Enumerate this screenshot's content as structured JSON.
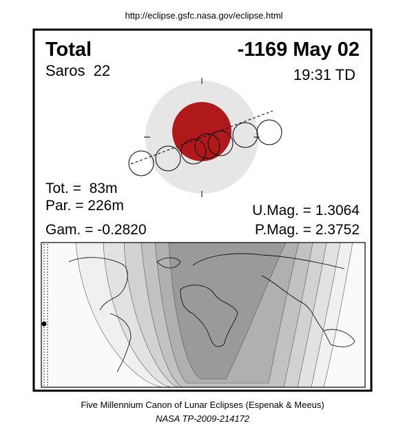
{
  "header": {
    "url": "http://eclipse.gsfc.nasa.gov/eclipse.html"
  },
  "panel": {
    "type": "Total",
    "date": "-1169 May 02",
    "saros": "Saros  22",
    "time": "19:31 TD"
  },
  "stats": {
    "tot": "Tot. =  83m",
    "par": "Par. = 226m",
    "gam": "Gam. = -0.2820",
    "umag": "U.Mag. = 1.3064",
    "pmag": "P.Mag. = 2.3752"
  },
  "footer": {
    "line1": "Five Millennium Canon of Lunar Eclipses (Espenak & Meeus)",
    "line2": "NASA TP-2009-214172"
  }
}
